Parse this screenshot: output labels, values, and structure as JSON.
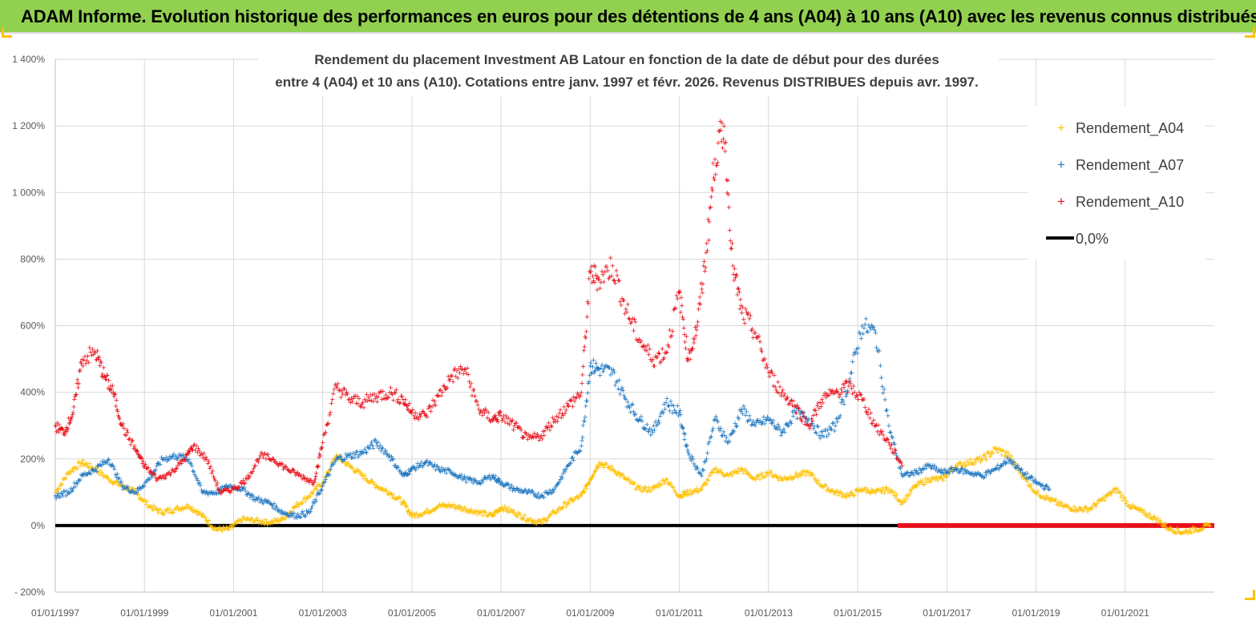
{
  "banner": {
    "title": "ADAM Informe. Evolution historique des performances en euros pour des détentions de 4 ans (A04) à 10 ans (A10) avec les revenus connus distribués"
  },
  "colors": {
    "banner": "#92d050",
    "A04": "#ffc000",
    "A07": "#1f77c0",
    "A10": "#e8101a",
    "zero": "#000000"
  },
  "chart_data": {
    "type": "scatter",
    "title_lines": [
      "Rendement du placement Investment AB Latour en fonction de la date de début pour des durées",
      "entre 4 (A04) et 10 ans (A10). Cotations entre janv. 1997 et févr. 2026. Revenus DISTRIBUES depuis avr. 1997."
    ],
    "xlabel": "",
    "ylabel": "",
    "xlim": [
      1997.0,
      2023.0
    ],
    "ylim": [
      -200,
      1400
    ],
    "y_ticks": [
      {
        "value": -200,
        "label": "- 200%"
      },
      {
        "value": 0,
        "label": "0%"
      },
      {
        "value": 200,
        "label": "200%"
      },
      {
        "value": 400,
        "label": "400%"
      },
      {
        "value": 600,
        "label": "600%"
      },
      {
        "value": 800,
        "label": "800%"
      },
      {
        "value": 1000,
        "label": "1 000%"
      },
      {
        "value": 1200,
        "label": "1 200%"
      },
      {
        "value": 1400,
        "label": "1 400%"
      }
    ],
    "x_ticks": [
      {
        "value": 1997,
        "label": "01/01/1997"
      },
      {
        "value": 1999,
        "label": "01/01/1999"
      },
      {
        "value": 2001,
        "label": "01/01/2001"
      },
      {
        "value": 2003,
        "label": "01/01/2003"
      },
      {
        "value": 2005,
        "label": "01/01/2005"
      },
      {
        "value": 2007,
        "label": "01/01/2007"
      },
      {
        "value": 2009,
        "label": "01/01/2009"
      },
      {
        "value": 2011,
        "label": "01/01/2011"
      },
      {
        "value": 2013,
        "label": "01/01/2013"
      },
      {
        "value": 2015,
        "label": "01/01/2015"
      },
      {
        "value": 2017,
        "label": "01/01/2017"
      },
      {
        "value": 2019,
        "label": "01/01/2019"
      },
      {
        "value": 2021,
        "label": "01/01/2021"
      }
    ],
    "legend_position": "top-right",
    "series": [
      {
        "name": "Rendement_A04",
        "marker": "+",
        "x": [
          1997.0,
          1997.3,
          1997.6,
          1997.9,
          1998.2,
          1998.5,
          1998.8,
          1999.1,
          1999.4,
          1999.7,
          2000.0,
          2000.3,
          2000.6,
          2000.9,
          2001.2,
          2001.5,
          2001.8,
          2002.1,
          2002.4,
          2002.7,
          2003.0,
          2003.3,
          2003.6,
          2003.9,
          2004.2,
          2004.5,
          2004.8,
          2005.0,
          2005.3,
          2005.6,
          2005.9,
          2006.2,
          2006.5,
          2006.8,
          2007.0,
          2007.3,
          2007.6,
          2007.9,
          2008.2,
          2008.5,
          2008.8,
          2009.0,
          2009.2,
          2009.5,
          2009.8,
          2010.1,
          2010.4,
          2010.7,
          2011.0,
          2011.2,
          2011.5,
          2011.8,
          2012.1,
          2012.4,
          2012.7,
          2013.0,
          2013.3,
          2013.6,
          2013.9,
          2014.2,
          2014.5,
          2014.8,
          2015.1,
          2015.4,
          2015.7,
          2016.0,
          2016.3,
          2016.6,
          2016.9,
          2017.2,
          2017.5,
          2017.8,
          2018.1,
          2018.4,
          2018.7,
          2019.0,
          2019.3,
          2019.6,
          2019.9,
          2020.2,
          2020.5,
          2020.8,
          2021.1,
          2021.4,
          2021.7,
          2022.0,
          2022.3,
          2022.6,
          2022.9
        ],
        "y": [
          100,
          160,
          190,
          170,
          140,
          120,
          100,
          60,
          40,
          50,
          60,
          30,
          -10,
          -10,
          20,
          15,
          10,
          20,
          60,
          90,
          130,
          210,
          180,
          150,
          120,
          100,
          70,
          30,
          40,
          60,
          60,
          50,
          40,
          30,
          55,
          40,
          20,
          10,
          40,
          70,
          90,
          140,
          190,
          170,
          140,
          110,
          110,
          140,
          90,
          100,
          110,
          170,
          150,
          170,
          140,
          160,
          140,
          150,
          160,
          120,
          100,
          90,
          110,
          100,
          110,
          70,
          120,
          140,
          140,
          180,
          190,
          200,
          230,
          210,
          150,
          100,
          80,
          60,
          50,
          50,
          80,
          110,
          60,
          40,
          20,
          -10,
          -20,
          -10,
          0
        ]
      },
      {
        "name": "Rendement_A07",
        "marker": "+",
        "x": [
          1997.0,
          1997.3,
          1997.6,
          1997.9,
          1998.2,
          1998.5,
          1998.8,
          1999.1,
          1999.4,
          1999.7,
          2000.0,
          2000.3,
          2000.6,
          2000.9,
          2001.2,
          2001.5,
          2001.8,
          2002.1,
          2002.4,
          2002.7,
          2003.0,
          2003.3,
          2003.6,
          2003.9,
          2004.2,
          2004.5,
          2004.8,
          2005.0,
          2005.3,
          2005.6,
          2005.9,
          2006.2,
          2006.5,
          2006.8,
          2007.0,
          2007.3,
          2007.6,
          2007.9,
          2008.2,
          2008.5,
          2008.8,
          2009.0,
          2009.2,
          2009.5,
          2009.8,
          2010.1,
          2010.4,
          2010.7,
          2011.0,
          2011.2,
          2011.5,
          2011.8,
          2012.1,
          2012.4,
          2012.7,
          2013.0,
          2013.3,
          2013.6,
          2013.9,
          2014.2,
          2014.5,
          2014.8,
          2015.1,
          2015.4,
          2015.7,
          2016.0,
          2016.3,
          2016.6,
          2016.9,
          2017.2,
          2017.5,
          2017.8,
          2018.1,
          2018.4,
          2018.7,
          2019.0,
          2019.3
        ],
        "y": [
          90,
          100,
          150,
          170,
          200,
          120,
          100,
          140,
          200,
          210,
          200,
          100,
          100,
          120,
          110,
          80,
          70,
          40,
          30,
          40,
          120,
          200,
          210,
          220,
          250,
          210,
          150,
          170,
          190,
          170,
          160,
          140,
          130,
          150,
          130,
          110,
          100,
          90,
          110,
          180,
          240,
          480,
          470,
          460,
          380,
          320,
          280,
          370,
          340,
          220,
          150,
          320,
          250,
          350,
          300,
          320,
          280,
          340,
          320,
          270,
          300,
          430,
          600,
          580,
          300,
          150,
          160,
          180,
          160,
          170,
          160,
          150,
          170,
          200,
          160,
          130,
          110
        ]
      },
      {
        "name": "Rendement_A10",
        "marker": "+",
        "x": [
          1997.0,
          1997.2,
          1997.4,
          1997.6,
          1997.9,
          1998.1,
          1998.3,
          1998.5,
          1998.8,
          1999.0,
          1999.3,
          1999.6,
          1999.9,
          2000.1,
          2000.4,
          2000.7,
          2001.0,
          2001.3,
          2001.6,
          2001.9,
          2002.2,
          2002.5,
          2002.8,
          2003.0,
          2003.3,
          2003.6,
          2003.9,
          2004.2,
          2004.5,
          2004.8,
          2005.0,
          2005.3,
          2005.6,
          2005.9,
          2006.2,
          2006.5,
          2006.8,
          2007.0,
          2007.3,
          2007.6,
          2007.9,
          2008.2,
          2008.5,
          2008.8,
          2009.0,
          2009.2,
          2009.5,
          2009.8,
          2010.1,
          2010.4,
          2010.7,
          2011.0,
          2011.2,
          2011.4,
          2011.6,
          2011.8,
          2012.0,
          2012.2,
          2012.4,
          2012.7,
          2013.0,
          2013.3,
          2013.6,
          2013.9,
          2014.2,
          2014.5,
          2014.8,
          2015.1,
          2015.4,
          2015.7,
          2016.0
        ],
        "y": [
          300,
          280,
          340,
          500,
          520,
          450,
          400,
          300,
          230,
          180,
          140,
          160,
          200,
          240,
          200,
          100,
          110,
          140,
          210,
          200,
          170,
          150,
          130,
          250,
          420,
          380,
          370,
          390,
          400,
          380,
          340,
          330,
          390,
          450,
          470,
          350,
          320,
          330,
          300,
          260,
          270,
          320,
          360,
          400,
          760,
          740,
          780,
          650,
          560,
          500,
          520,
          700,
          500,
          600,
          820,
          1100,
          1200,
          780,
          640,
          580,
          460,
          400,
          360,
          300,
          380,
          400,
          420,
          380,
          300,
          250,
          180
        ]
      },
      {
        "name": "0,0%",
        "marker": "line",
        "x": [
          1997.0,
          2015.9
        ],
        "y": [
          0,
          0
        ]
      }
    ],
    "zero_red_band": {
      "series": "Rendement_A10",
      "x": [
        2015.9,
        2023.0
      ],
      "y": [
        0,
        0
      ]
    }
  }
}
